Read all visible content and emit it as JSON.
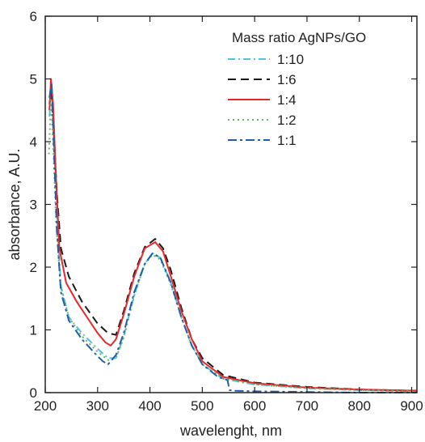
{
  "chart_data": {
    "type": "line",
    "xlabel": "wavelenght, nm",
    "ylabel": "absorbance, A.U.",
    "xlim": [
      200,
      910
    ],
    "ylim": [
      0,
      6
    ],
    "xticks": [
      200,
      300,
      400,
      500,
      600,
      700,
      800,
      900
    ],
    "yticks": [
      0,
      1,
      2,
      3,
      4,
      5,
      6
    ],
    "grid": false,
    "legend_title": "Mass ratio AgNPs/GO",
    "legend_position": "top-right",
    "series": [
      {
        "name": "1:10",
        "color": "#4fc3e0",
        "dash": "9 4 2 4",
        "x": [
          208,
          212,
          216,
          222,
          230,
          245,
          270,
          300,
          320,
          335,
          350,
          370,
          390,
          405,
          420,
          440,
          460,
          480,
          500,
          540,
          600,
          700,
          800,
          910
        ],
        "y": [
          4.4,
          4.9,
          4.2,
          2.8,
          1.7,
          1.2,
          0.95,
          0.7,
          0.55,
          0.55,
          0.9,
          1.55,
          2.05,
          2.22,
          2.15,
          1.75,
          1.2,
          0.75,
          0.45,
          0.22,
          0.13,
          0.07,
          0.04,
          0.02
        ]
      },
      {
        "name": "1:6",
        "color": "#1a1a1a",
        "dash": "10 6",
        "x": [
          208,
          212,
          216,
          222,
          230,
          245,
          270,
          300,
          320,
          335,
          350,
          370,
          390,
          410,
          425,
          440,
          460,
          480,
          500,
          540,
          600,
          700,
          800,
          910
        ],
        "y": [
          4.6,
          4.8,
          4.2,
          3.2,
          2.3,
          1.85,
          1.45,
          1.1,
          0.95,
          0.92,
          1.3,
          1.9,
          2.32,
          2.45,
          2.3,
          1.95,
          1.35,
          0.85,
          0.55,
          0.28,
          0.16,
          0.09,
          0.05,
          0.03
        ]
      },
      {
        "name": "1:4",
        "color": "#e8262b",
        "dash": "",
        "x": [
          208,
          211,
          215,
          220,
          227,
          240,
          260,
          280,
          300,
          315,
          325,
          335,
          350,
          370,
          390,
          410,
          425,
          440,
          460,
          480,
          500,
          540,
          600,
          700,
          800,
          910
        ],
        "y": [
          4.5,
          5.0,
          4.6,
          3.5,
          2.3,
          1.75,
          1.45,
          1.2,
          0.95,
          0.8,
          0.75,
          0.85,
          1.25,
          1.85,
          2.3,
          2.4,
          2.25,
          1.85,
          1.3,
          0.85,
          0.5,
          0.25,
          0.15,
          0.08,
          0.05,
          0.03
        ]
      },
      {
        "name": "1:2",
        "color": "#5cb85c",
        "dash": "2 4",
        "x": [
          207,
          211,
          215,
          221,
          229,
          245,
          270,
          300,
          320,
          335,
          350,
          370,
          390,
          405,
          420,
          440,
          460,
          480,
          500,
          540,
          600,
          700,
          800,
          910
        ],
        "y": [
          3.8,
          4.7,
          4.0,
          2.7,
          1.7,
          1.2,
          0.9,
          0.65,
          0.52,
          0.55,
          0.88,
          1.55,
          2.05,
          2.2,
          2.12,
          1.72,
          1.2,
          0.75,
          0.45,
          0.22,
          0.13,
          0.07,
          0.04,
          0.02
        ]
      },
      {
        "name": "1:1",
        "color": "#1f5fa8",
        "dash": "11 4 3 4",
        "x": [
          208,
          212,
          216,
          222,
          230,
          245,
          270,
          300,
          310,
          320,
          335,
          350,
          370,
          390,
          405,
          420,
          440,
          460,
          480,
          500,
          530,
          548,
          552,
          560,
          600,
          700,
          800,
          910
        ],
        "y": [
          4.7,
          4.95,
          4.0,
          2.6,
          1.6,
          1.15,
          0.85,
          0.58,
          0.5,
          0.45,
          0.6,
          0.95,
          1.6,
          2.05,
          2.22,
          2.15,
          1.75,
          1.2,
          0.75,
          0.45,
          0.25,
          0.2,
          0.04,
          0.03,
          0.02,
          0.01,
          0.0,
          0.0
        ]
      }
    ]
  }
}
